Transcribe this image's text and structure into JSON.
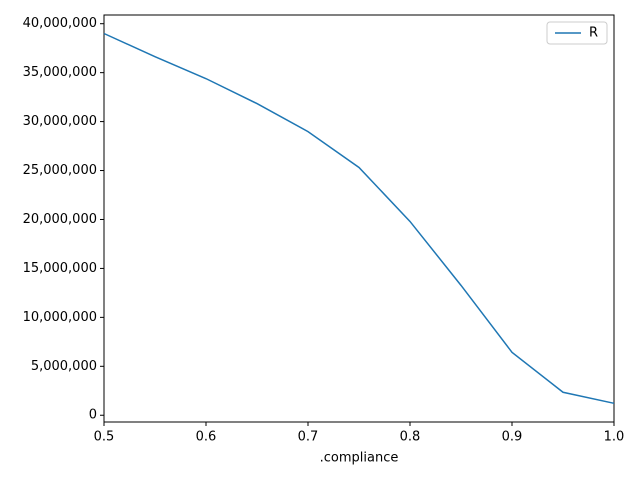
{
  "chart_data": {
    "type": "line",
    "xlabel": ".compliance",
    "x": [
      0.5,
      0.55,
      0.6,
      0.65,
      0.7,
      0.75,
      0.8,
      0.85,
      0.9,
      0.95,
      1.0
    ],
    "series": [
      {
        "name": "R",
        "color": "#1f77b4",
        "values": [
          39000000,
          36630000,
          34390000,
          31840000,
          28980000,
          25310000,
          19800000,
          13270000,
          6430000,
          2350000,
          1220000
        ]
      }
    ],
    "xlim": [
      0.5,
      1.0
    ],
    "xticks": [
      0.5,
      0.6,
      0.7,
      0.8,
      0.9,
      {
        "value": 1.0,
        "label": "1.0"
      }
    ],
    "ylim": [
      -690000,
      40890000
    ],
    "yticks": [
      {
        "value": 0,
        "label": "0"
      },
      {
        "value": 5000000,
        "label": "5,000,000"
      },
      {
        "value": 10000000,
        "label": "10,000,000"
      },
      {
        "value": 15000000,
        "label": "15,000,000"
      },
      {
        "value": 20000000,
        "label": "20,000,000"
      },
      {
        "value": 25000000,
        "label": "25,000,000"
      },
      {
        "value": 30000000,
        "label": "30,000,000"
      },
      {
        "value": 35000000,
        "label": "35,000,000"
      },
      {
        "value": 40000000,
        "label": "40,000,000"
      }
    ],
    "legend": "upper right"
  }
}
